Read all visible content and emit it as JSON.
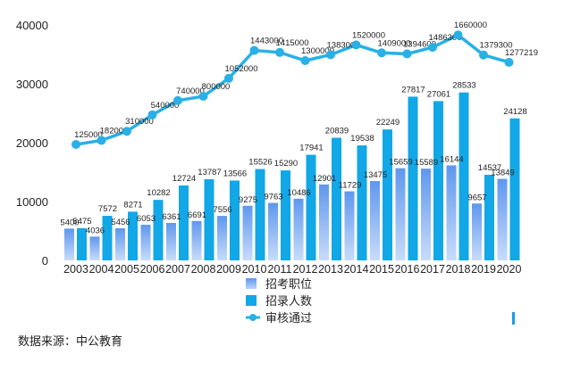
{
  "chart_data": {
    "type": "bar",
    "categories": [
      "2003",
      "2004",
      "2005",
      "2006",
      "2007",
      "2008",
      "2009",
      "2010",
      "2011",
      "2012",
      "2013",
      "2014",
      "2015",
      "2016",
      "2017",
      "2018",
      "2019",
      "2020"
    ],
    "series": [
      {
        "name": "招考职位",
        "type": "bar",
        "color": "#5f97ee",
        "values": [
          5400,
          4036,
          5456,
          6053,
          6361,
          6691,
          7556,
          9275,
          9763,
          10486,
          12901,
          11729,
          13475,
          15659,
          15589,
          16144,
          9657,
          13849
        ]
      },
      {
        "name": "招录人数",
        "type": "bar",
        "color": "#12a7e6",
        "values": [
          5475,
          7572,
          8271,
          10282,
          12724,
          13787,
          13566,
          15526,
          15290,
          17941,
          20839,
          19538,
          22249,
          27817,
          27061,
          28533,
          14537,
          24128
        ]
      },
      {
        "name": "审核通过",
        "type": "line",
        "color": "#29b0e6",
        "axis": "secondary",
        "values": [
          125000,
          182000,
          310000,
          540000,
          740000,
          800000,
          1052000,
          1443000,
          1415000,
          1300000,
          1383000,
          1520000,
          1409000,
          1394600,
          1486300,
          1660000,
          1379300,
          1277219
        ]
      }
    ],
    "ylim": [
      0,
      40000
    ],
    "yticks": [
      "0",
      "10000",
      "20000",
      "30000",
      "40000"
    ],
    "y2lim": [
      -1500000,
      1800000
    ],
    "legend_position": "bottom"
  },
  "source": "数据来源：中公教育"
}
